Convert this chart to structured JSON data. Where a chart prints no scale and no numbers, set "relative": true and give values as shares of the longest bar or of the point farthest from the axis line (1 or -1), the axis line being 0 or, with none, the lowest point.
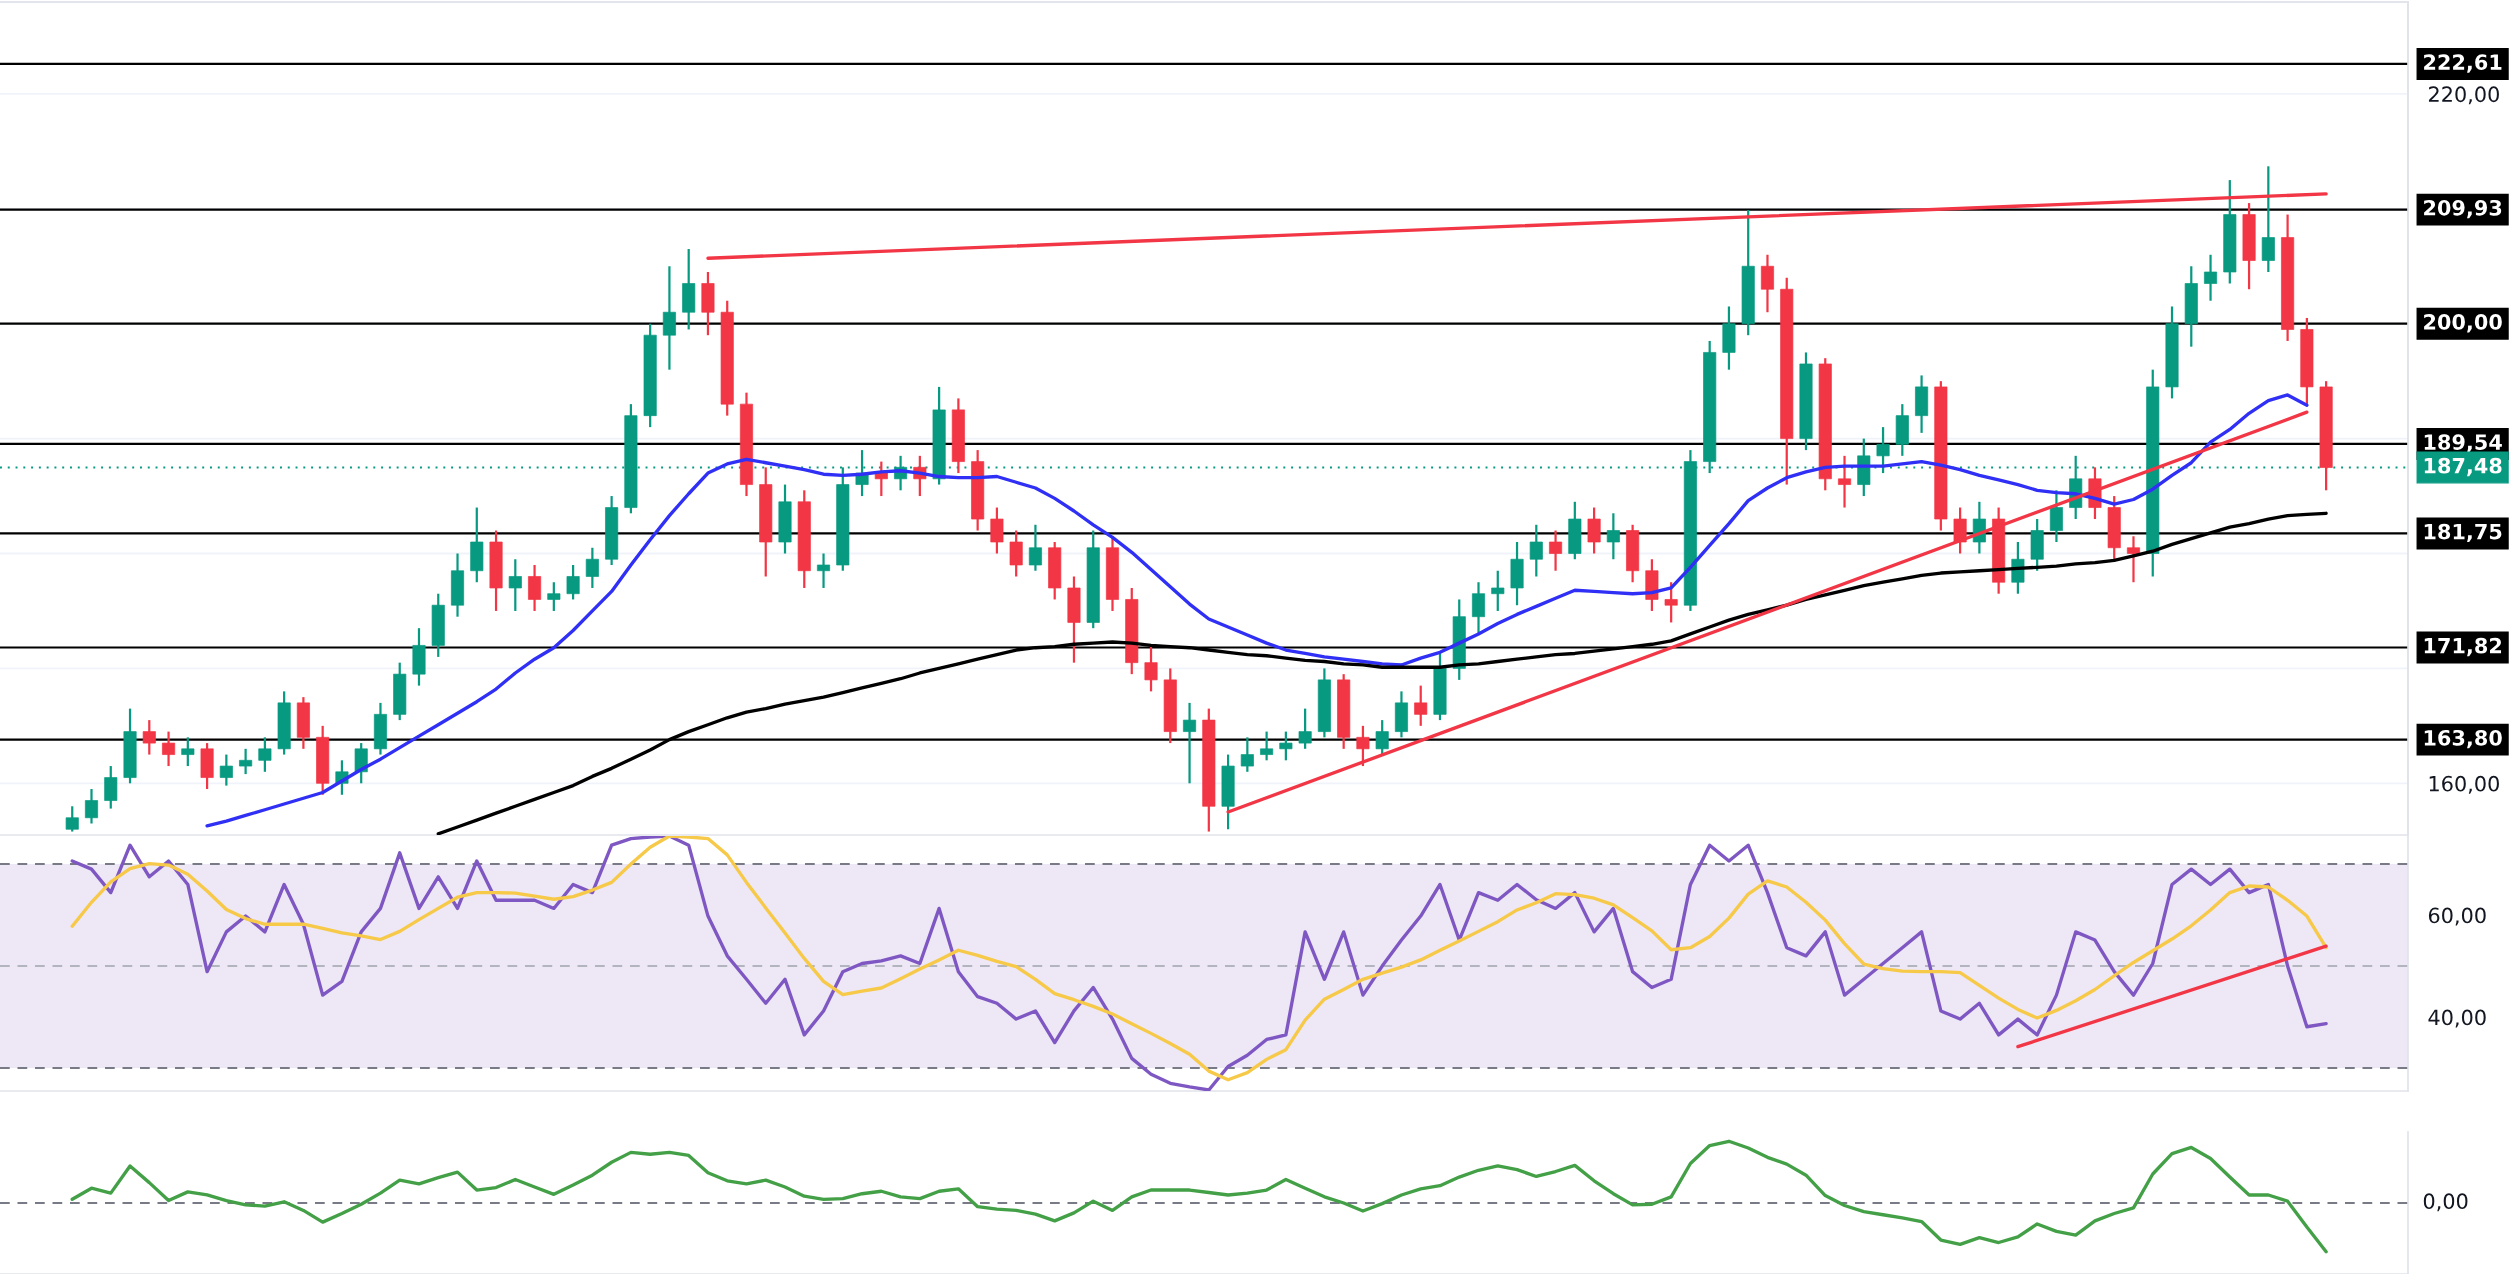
{
  "chart_data": [
    {
      "type": "candlestick",
      "categories": [
        null,
        null,
        null,
        null,
        null,
        null,
        null,
        null,
        null,
        null,
        null,
        null,
        null,
        null,
        null,
        null,
        null,
        null,
        null,
        null,
        null,
        null,
        null,
        null,
        null,
        null,
        null,
        null,
        null,
        null,
        null,
        null,
        null,
        null,
        null,
        null,
        null,
        null,
        null,
        null,
        null,
        null,
        null,
        null,
        null,
        null,
        null,
        null,
        null,
        null,
        null,
        null,
        null,
        null,
        null,
        null,
        null,
        null,
        null,
        null,
        null,
        null,
        null,
        null,
        null,
        null,
        null,
        null,
        null,
        null,
        null,
        null,
        null,
        null,
        null,
        null,
        null,
        null,
        null,
        null,
        null,
        null,
        null,
        null,
        null,
        null,
        null,
        null,
        null,
        null,
        null,
        null,
        null,
        null,
        null,
        null,
        null,
        null,
        null,
        null,
        null,
        null,
        null,
        null,
        null,
        null,
        null,
        null,
        null,
        null,
        null,
        null,
        null,
        null,
        null,
        null,
        null,
        null
      ],
      "ohlc": [
        [
          156.0,
          158.0,
          155.8,
          157.0
        ],
        [
          157.0,
          159.5,
          156.5,
          158.5
        ],
        [
          158.5,
          161.5,
          157.8,
          160.5
        ],
        [
          160.5,
          166.5,
          160.0,
          164.5
        ],
        [
          164.5,
          165.5,
          162.5,
          163.5
        ],
        [
          163.5,
          164.5,
          161.5,
          162.5
        ],
        [
          162.5,
          164.0,
          161.5,
          163.0
        ],
        [
          163.0,
          163.5,
          159.5,
          160.5
        ],
        [
          160.5,
          162.5,
          159.8,
          161.5
        ],
        [
          161.5,
          163.0,
          160.8,
          162.0
        ],
        [
          162.0,
          164.0,
          161.0,
          163.0
        ],
        [
          163.0,
          168.0,
          162.5,
          167.0
        ],
        [
          167.0,
          167.5,
          163.0,
          164.0
        ],
        [
          164.0,
          165.0,
          159.0,
          160.0
        ],
        [
          160.0,
          162.0,
          159.0,
          161.0
        ],
        [
          161.0,
          163.5,
          160.0,
          163.0
        ],
        [
          163.0,
          167.0,
          162.5,
          166.0
        ],
        [
          166.0,
          170.5,
          165.5,
          169.5
        ],
        [
          169.5,
          173.5,
          168.5,
          172.0
        ],
        [
          172.0,
          176.5,
          171.0,
          175.5
        ],
        [
          175.5,
          180.0,
          174.5,
          178.5
        ],
        [
          178.5,
          184.0,
          177.5,
          181.0
        ],
        [
          181.0,
          182.0,
          175.0,
          177.0
        ],
        [
          177.0,
          179.5,
          175.0,
          178.0
        ],
        [
          178.0,
          179.0,
          175.0,
          176.0
        ],
        [
          176.0,
          177.5,
          175.0,
          176.5
        ],
        [
          176.5,
          179.0,
          176.0,
          178.0
        ],
        [
          178.0,
          180.5,
          177.0,
          179.5
        ],
        [
          179.5,
          185.0,
          179.0,
          184.0
        ],
        [
          184.0,
          193.0,
          183.5,
          192.0
        ],
        [
          192.0,
          200.0,
          191.0,
          199.0
        ],
        [
          199.0,
          205.0,
          196.0,
          201.0
        ],
        [
          201.0,
          206.5,
          199.5,
          203.5
        ],
        [
          203.5,
          204.5,
          199.0,
          201.0
        ],
        [
          201.0,
          202.0,
          192.0,
          193.0
        ],
        [
          193.0,
          194.0,
          185.0,
          186.0
        ],
        [
          186.0,
          187.5,
          178.0,
          181.0
        ],
        [
          181.0,
          186.0,
          180.0,
          184.5
        ],
        [
          184.5,
          185.5,
          177.0,
          178.5
        ],
        [
          178.5,
          180.0,
          177.0,
          179.0
        ],
        [
          179.0,
          187.5,
          178.5,
          186.0
        ],
        [
          186.0,
          189.0,
          185.0,
          187.0
        ],
        [
          187.0,
          188.0,
          185.0,
          186.5
        ],
        [
          186.5,
          188.5,
          185.5,
          187.5
        ],
        [
          187.5,
          188.5,
          185.0,
          186.5
        ],
        [
          186.5,
          194.5,
          186.0,
          192.5
        ],
        [
          192.5,
          193.5,
          187.0,
          188.0
        ],
        [
          188.0,
          189.0,
          182.0,
          183.0
        ],
        [
          183.0,
          184.0,
          180.0,
          181.0
        ],
        [
          181.0,
          182.0,
          178.0,
          179.0
        ],
        [
          179.0,
          182.5,
          178.5,
          180.5
        ],
        [
          180.5,
          181.0,
          176.0,
          177.0
        ],
        [
          177.0,
          178.0,
          170.5,
          174.0
        ],
        [
          174.0,
          182.0,
          173.5,
          180.5
        ],
        [
          180.5,
          181.5,
          175.0,
          176.0
        ],
        [
          176.0,
          177.0,
          169.5,
          170.5
        ],
        [
          170.5,
          172.0,
          168.0,
          169.0
        ],
        [
          169.0,
          170.0,
          163.5,
          164.5
        ],
        [
          164.5,
          167.0,
          160.0,
          165.5
        ],
        [
          165.5,
          166.5,
          155.8,
          158.0
        ],
        [
          158.0,
          162.5,
          156.0,
          161.5
        ],
        [
          161.5,
          164.0,
          161.0,
          162.5
        ],
        [
          162.5,
          164.5,
          162.0,
          163.0
        ],
        [
          163.0,
          164.5,
          162.0,
          163.5
        ],
        [
          163.5,
          166.5,
          163.0,
          164.5
        ],
        [
          164.5,
          170.0,
          164.0,
          169.0
        ],
        [
          169.0,
          169.5,
          163.0,
          164.0
        ],
        [
          164.0,
          165.0,
          161.5,
          163.0
        ],
        [
          163.0,
          165.5,
          162.5,
          164.5
        ],
        [
          164.5,
          168.0,
          164.0,
          167.0
        ],
        [
          167.0,
          168.5,
          165.0,
          166.0
        ],
        [
          166.0,
          171.5,
          165.5,
          170.0
        ],
        [
          170.0,
          176.0,
          169.0,
          174.5
        ],
        [
          174.5,
          177.5,
          173.0,
          176.5
        ],
        [
          176.5,
          178.5,
          175.0,
          177.0
        ],
        [
          177.0,
          181.0,
          175.5,
          179.5
        ],
        [
          179.5,
          182.5,
          178.0,
          181.0
        ],
        [
          181.0,
          182.0,
          178.5,
          180.0
        ],
        [
          180.0,
          184.5,
          179.5,
          183.0
        ],
        [
          183.0,
          184.0,
          180.0,
          181.0
        ],
        [
          181.0,
          183.5,
          179.5,
          182.0
        ],
        [
          182.0,
          182.5,
          177.5,
          178.5
        ],
        [
          178.5,
          179.5,
          175.0,
          176.0
        ],
        [
          176.0,
          177.5,
          174.0,
          175.5
        ],
        [
          175.5,
          189.0,
          175.0,
          188.0
        ],
        [
          188.0,
          198.5,
          187.0,
          197.5
        ],
        [
          197.5,
          201.5,
          196.0,
          200.0
        ],
        [
          200.0,
          209.9,
          199.0,
          205.0
        ],
        [
          205.0,
          206.0,
          201.0,
          203.0
        ],
        [
          203.0,
          204.0,
          186.0,
          190.0
        ],
        [
          190.0,
          197.5,
          189.0,
          196.5
        ],
        [
          196.5,
          197.0,
          185.5,
          186.5
        ],
        [
          186.5,
          188.5,
          184.0,
          186.0
        ],
        [
          186.0,
          190.0,
          185.0,
          188.5
        ],
        [
          188.5,
          191.0,
          187.0,
          189.5
        ],
        [
          189.5,
          193.0,
          188.5,
          192.0
        ],
        [
          192.0,
          195.5,
          190.5,
          194.5
        ],
        [
          194.5,
          195.0,
          182.0,
          183.0
        ],
        [
          183.0,
          184.0,
          180.0,
          181.0
        ],
        [
          181.0,
          184.5,
          180.0,
          183.0
        ],
        [
          183.0,
          184.0,
          176.5,
          177.5
        ],
        [
          177.5,
          181.0,
          176.5,
          179.5
        ],
        [
          179.5,
          183.0,
          178.5,
          182.0
        ],
        [
          182.0,
          185.5,
          181.0,
          184.0
        ],
        [
          184.0,
          188.5,
          183.0,
          186.5
        ],
        [
          186.5,
          187.5,
          183.0,
          184.0
        ],
        [
          184.0,
          185.0,
          179.5,
          180.5
        ],
        [
          180.5,
          181.5,
          177.5,
          180.0
        ],
        [
          180.0,
          196.0,
          178.0,
          194.5
        ],
        [
          194.5,
          201.5,
          193.5,
          200.0
        ],
        [
          200.0,
          205.0,
          198.0,
          203.5
        ],
        [
          203.5,
          206.0,
          202.0,
          204.5
        ],
        [
          204.5,
          212.5,
          203.5,
          209.5
        ],
        [
          209.5,
          210.5,
          203.0,
          205.5
        ],
        [
          205.5,
          213.7,
          204.5,
          207.5
        ],
        [
          207.5,
          209.5,
          198.5,
          199.5
        ],
        [
          199.5,
          200.5,
          193.0,
          194.5
        ],
        [
          194.5,
          195.0,
          185.5,
          187.48
        ]
      ],
      "ylim": [
        155.5,
        228
      ],
      "yticks": [
        {
          "value": 160,
          "label": "160,00"
        },
        {
          "value": 170,
          "label": null
        },
        {
          "value": 180,
          "label": null
        },
        {
          "value": 190,
          "label": null
        },
        {
          "value": 200,
          "label": null
        },
        {
          "value": 210,
          "label": null
        },
        {
          "value": 220,
          "label": "220,00"
        }
      ],
      "tick_labels": "y",
      "grid": "y",
      "ref_lines": [
        {
          "axis": "y",
          "value": 222.61,
          "label": "222,61",
          "color": "#000000"
        },
        {
          "axis": "y",
          "value": 209.93,
          "label": "209,93",
          "color": "#000000"
        },
        {
          "axis": "y",
          "value": 200,
          "label": "200,00",
          "color": "#000000"
        },
        {
          "axis": "y",
          "value": 189.54,
          "label": "189,54",
          "color": "#000000"
        },
        {
          "axis": "y",
          "value": 187.48,
          "label": "187,48",
          "color": "#089981",
          "line_style": "dotted"
        },
        {
          "axis": "y",
          "value": 181.75,
          "label": "181,75",
          "color": "#000000"
        },
        {
          "axis": "y",
          "value": 171.82,
          "label": "171,82",
          "color": "#000000"
        },
        {
          "axis": "y",
          "value": 163.8,
          "label": "163,80",
          "color": "#000000"
        }
      ]
    },
    {
      "type": "line",
      "categories": [
        null,
        null,
        null,
        null,
        null,
        null,
        null,
        null,
        null,
        null,
        null,
        null,
        null,
        null,
        null,
        null,
        null,
        null,
        null,
        null,
        null,
        null,
        null,
        null,
        null,
        null,
        null,
        null,
        null,
        null,
        null,
        null,
        null,
        null,
        null,
        null,
        null,
        null,
        null,
        null,
        null,
        null,
        null,
        null,
        null,
        null,
        null,
        null,
        null,
        null,
        null,
        null,
        null,
        null,
        null,
        null,
        null,
        null,
        null,
        null,
        null,
        null,
        null,
        null,
        null,
        null,
        null,
        null,
        null,
        null,
        null,
        null,
        null,
        null,
        null,
        null,
        null,
        null,
        null,
        null,
        null,
        null,
        null,
        null,
        null,
        null,
        null,
        null,
        null,
        null,
        null,
        null,
        null,
        null,
        null,
        null,
        null,
        null,
        null,
        null,
        null,
        null,
        null,
        null,
        null,
        null,
        null,
        null,
        null,
        null,
        null,
        null,
        null,
        null,
        null,
        null,
        null,
        null
      ],
      "ylim": [
        155.5,
        228
      ],
      "tick_labels": false,
      "series": [
        {
          "color": "#2f2ff5",
          "values": [
            null,
            null,
            null,
            null,
            null,
            null,
            null,
            156.3,
            156.7,
            157.2,
            157.7,
            158.2,
            158.7,
            159.2,
            160.2,
            161.2,
            162.1,
            163.1,
            164.1,
            165.1,
            166.1,
            167.1,
            168.2,
            169.6,
            170.8,
            171.8,
            173.3,
            175.0,
            176.7,
            179.0,
            181.2,
            183.3,
            185.2,
            187.0,
            187.8,
            188.2,
            187.9,
            187.6,
            187.3,
            186.9,
            186.8,
            186.9,
            187.1,
            187.2,
            187.0,
            186.7,
            186.6,
            186.6,
            186.7,
            186.2,
            185.7,
            184.8,
            183.7,
            182.5,
            181.4,
            180.1,
            178.6,
            177.1,
            175.6,
            174.3,
            173.6,
            172.9,
            172.2,
            171.6,
            171.3,
            171.0,
            170.8,
            170.6,
            170.4,
            170.3,
            170.9,
            171.4,
            172.2,
            173.0,
            173.9,
            174.7,
            175.4,
            176.1,
            176.8,
            176.7,
            176.6,
            176.5,
            176.6,
            177.0,
            178.8,
            180.7,
            182.6,
            184.6,
            185.7,
            186.6,
            187.1,
            187.5,
            187.6,
            187.6,
            187.6,
            187.8,
            188.0,
            187.7,
            187.3,
            186.8,
            186.4,
            186.0,
            185.5,
            185.3,
            185.2,
            184.8,
            184.3,
            184.7,
            185.6,
            186.8,
            187.9,
            189.7,
            190.8,
            192.2,
            193.3,
            193.8,
            192.9,
            null
          ]
        },
        {
          "color": "#000000",
          "values": [
            null,
            null,
            null,
            null,
            null,
            null,
            null,
            null,
            null,
            null,
            null,
            null,
            null,
            null,
            null,
            null,
            null,
            null,
            null,
            155.6,
            156.2,
            156.8,
            157.4,
            158.0,
            158.6,
            159.2,
            159.8,
            160.6,
            161.3,
            162.1,
            162.9,
            163.8,
            164.5,
            165.1,
            165.7,
            166.2,
            166.5,
            166.9,
            167.2,
            167.5,
            167.9,
            168.3,
            168.7,
            169.1,
            169.6,
            170.0,
            170.4,
            170.8,
            171.2,
            171.6,
            171.8,
            171.9,
            172.1,
            172.2,
            172.3,
            172.2,
            172.0,
            171.9,
            171.8,
            171.6,
            171.4,
            171.2,
            171.1,
            170.9,
            170.7,
            170.6,
            170.4,
            170.3,
            170.1,
            170.1,
            170.1,
            170.1,
            170.3,
            170.4,
            170.6,
            170.8,
            171.0,
            171.2,
            171.3,
            171.5,
            171.7,
            171.9,
            172.1,
            172.4,
            173.0,
            173.6,
            174.2,
            174.7,
            175.1,
            175.5,
            176.0,
            176.4,
            176.8,
            177.2,
            177.5,
            177.8,
            178.1,
            178.3,
            178.4,
            178.5,
            178.6,
            178.7,
            178.8,
            178.9,
            179.1,
            179.2,
            179.4,
            179.8,
            180.2,
            180.8,
            181.3,
            181.8,
            182.3,
            182.6,
            183.0,
            183.3,
            183.4,
            183.5
          ]
        },
        {
          "color": "#f23645",
          "values": [
            null,
            null,
            null,
            null,
            null,
            null,
            null,
            null,
            null,
            null,
            null,
            null,
            null,
            null,
            null,
            null,
            null,
            null,
            null,
            null,
            null,
            null,
            null,
            null,
            null,
            null,
            null,
            null,
            null,
            null,
            null,
            null,
            null,
            205.7,
            null,
            null,
            null,
            null,
            null,
            null,
            null,
            null,
            null,
            null,
            null,
            null,
            null,
            null,
            null,
            null,
            null,
            null,
            null,
            null,
            null,
            null,
            null,
            null,
            null,
            null,
            null,
            null,
            null,
            null,
            null,
            null,
            null,
            null,
            null,
            null,
            null,
            null,
            null,
            null,
            null,
            null,
            null,
            null,
            null,
            null,
            null,
            null,
            null,
            null,
            null,
            null,
            null,
            null,
            null,
            null,
            null,
            null,
            null,
            null,
            null,
            null,
            null,
            null,
            null,
            null,
            null,
            null,
            null,
            null,
            null,
            null,
            null,
            null,
            null,
            null,
            null,
            null,
            null,
            null,
            null,
            null,
            null,
            211.3
          ]
        },
        {
          "color": "#f23645",
          "values": [
            null,
            null,
            null,
            null,
            null,
            null,
            null,
            null,
            null,
            null,
            null,
            null,
            null,
            null,
            null,
            null,
            null,
            null,
            null,
            null,
            null,
            null,
            null,
            null,
            null,
            null,
            null,
            null,
            null,
            null,
            null,
            null,
            null,
            null,
            null,
            null,
            null,
            null,
            null,
            null,
            null,
            null,
            null,
            null,
            null,
            null,
            null,
            null,
            null,
            null,
            null,
            null,
            null,
            null,
            null,
            null,
            null,
            null,
            null,
            null,
            157.5,
            null,
            null,
            null,
            null,
            null,
            null,
            null,
            null,
            null,
            null,
            null,
            null,
            null,
            null,
            null,
            null,
            null,
            null,
            null,
            null,
            null,
            null,
            null,
            null,
            null,
            null,
            null,
            null,
            null,
            null,
            null,
            null,
            null,
            null,
            null,
            null,
            null,
            null,
            null,
            null,
            null,
            null,
            null,
            null,
            null,
            null,
            null,
            null,
            null,
            null,
            null,
            null,
            null,
            null,
            null,
            192.3,
            null
          ]
        }
      ]
    },
    {
      "type": "line",
      "categories": [
        null,
        null,
        null,
        null,
        null,
        null,
        null,
        null,
        null,
        null,
        null,
        null,
        null,
        null,
        null,
        null,
        null,
        null,
        null,
        null,
        null,
        null,
        null,
        null,
        null,
        null,
        null,
        null,
        null,
        null,
        null,
        null,
        null,
        null,
        null,
        null,
        null,
        null,
        null,
        null,
        null,
        null,
        null,
        null,
        null,
        null,
        null,
        null,
        null,
        null,
        null,
        null,
        null,
        null,
        null,
        null,
        null,
        null,
        null,
        null,
        null,
        null,
        null,
        null,
        null,
        null,
        null,
        null,
        null,
        null,
        null,
        null,
        null,
        null,
        null,
        null,
        null,
        null,
        null,
        null,
        null,
        null,
        null,
        null,
        null,
        null,
        null,
        null,
        null,
        null,
        null,
        null,
        null,
        null,
        null,
        null,
        null,
        null,
        null,
        null,
        null,
        null,
        null,
        null,
        null,
        null,
        null,
        null,
        null,
        null,
        null,
        null,
        null,
        null,
        null,
        null,
        null,
        null
      ],
      "series": [
        {
          "color": "#7e57c2",
          "values": [
            70.6,
            69,
            64.4,
            73.7,
            67.5,
            70.6,
            66,
            48.9,
            56.7,
            59.8,
            56.7,
            66,
            58.2,
            44.3,
            47,
            56.7,
            61.3,
            72.2,
            61.3,
            67.5,
            61.3,
            70.6,
            62.9,
            62.9,
            62.9,
            61.3,
            66,
            64.4,
            73.7,
            75,
            75.3,
            75.5,
            73.7,
            59.8,
            52,
            47.4,
            42.7,
            47.4,
            36.5,
            41.2,
            48.9,
            50.5,
            51,
            52,
            50.5,
            61.3,
            48.9,
            44,
            42.7,
            39.6,
            41.2,
            35,
            41.2,
            45.8,
            39.6,
            31.9,
            28.8,
            27,
            26.3,
            25.7,
            30.3,
            32.5,
            35.6,
            36.5,
            56.7,
            47.4,
            56.7,
            44.3,
            50,
            55.1,
            59.8,
            66,
            55.1,
            64.4,
            62.9,
            66,
            63,
            61.3,
            64.4,
            56.7,
            61.3,
            48.9,
            45.8,
            47.4,
            66,
            73.7,
            70.6,
            73.7,
            64.4,
            53.6,
            52,
            56.7,
            44.3,
            47.4,
            50.5,
            53.6,
            56.7,
            41.2,
            39.6,
            42.7,
            36.5,
            39.6,
            36.5,
            44.3,
            56.7,
            55.1,
            48.9,
            44.3,
            50.5,
            66,
            69,
            66,
            69,
            64.4,
            66,
            50,
            38.1,
            38.7
          ]
        },
        {
          "color": "#f7c948",
          "values": [
            57.8,
            62.5,
            66.5,
            69.1,
            70.1,
            69.8,
            68.0,
            64.7,
            61.1,
            59.3,
            58.2,
            58.2,
            58.2,
            57.4,
            56.5,
            55.9,
            55.2,
            56.8,
            59.1,
            61.3,
            63.5,
            64.4,
            64.4,
            64.3,
            63.7,
            63.1,
            63.6,
            64.9,
            66.4,
            70.0,
            73.3,
            75.5,
            75.3,
            75.0,
            71.8,
            66.4,
            61.4,
            56.5,
            51.5,
            47.0,
            44.4,
            45.1,
            45.7,
            47.5,
            49.4,
            51.2,
            53.1,
            52.1,
            50.9,
            49.9,
            47.4,
            44.6,
            43.4,
            42.1,
            40.6,
            38.7,
            36.8,
            34.8,
            32.7,
            29.4,
            27.7,
            29.1,
            31.7,
            33.6,
            39.4,
            43.5,
            45.4,
            47.4,
            48.6,
            49.8,
            51.2,
            53.1,
            54.9,
            56.8,
            58.7,
            61.0,
            62.4,
            64.2,
            64.0,
            63.3,
            62.0,
            59.5,
            56.9,
            53.2,
            53.6,
            55.8,
            59.4,
            64.1,
            66.7,
            65.5,
            62.5,
            59.0,
            54.4,
            50.4,
            49.5,
            49.0,
            48.9,
            48.9,
            48.7,
            46.2,
            43.7,
            41.5,
            39.8,
            41.3,
            43.2,
            45.4,
            48.1,
            50.7,
            53.0,
            55.3,
            57.9,
            61.0,
            64.4,
            65.7,
            65.5,
            62.9,
            59.8,
            53.6
          ]
        },
        {
          "color": "#f23645",
          "values": [
            null,
            null,
            null,
            null,
            null,
            null,
            null,
            null,
            null,
            null,
            null,
            null,
            null,
            null,
            null,
            null,
            null,
            null,
            null,
            null,
            null,
            null,
            null,
            null,
            null,
            null,
            null,
            null,
            null,
            null,
            null,
            null,
            null,
            null,
            null,
            null,
            null,
            null,
            null,
            null,
            null,
            null,
            null,
            null,
            null,
            null,
            null,
            null,
            null,
            null,
            null,
            null,
            null,
            null,
            null,
            null,
            null,
            null,
            null,
            null,
            null,
            null,
            null,
            null,
            null,
            null,
            null,
            null,
            null,
            null,
            null,
            null,
            null,
            null,
            null,
            null,
            null,
            null,
            null,
            null,
            null,
            null,
            null,
            null,
            null,
            null,
            null,
            null,
            null,
            null,
            null,
            null,
            null,
            null,
            null,
            null,
            null,
            null,
            null,
            null,
            null,
            34.2,
            null,
            null,
            null,
            null,
            null,
            null,
            null,
            null,
            null,
            null,
            null,
            null,
            null,
            null,
            null,
            53.9
          ]
        }
      ],
      "ylim": [
        25.5,
        75.5
      ],
      "yticks": [
        {
          "value": 40,
          "label": "40,00"
        },
        {
          "value": 60,
          "label": "60,00"
        }
      ],
      "tick_labels": "y",
      "bands": [
        {
          "axis": "y",
          "from": 30,
          "to": 70,
          "color": "#ede7f6"
        }
      ],
      "ref_lines": [
        {
          "axis": "y",
          "value": 70,
          "color": "#787b86",
          "line_style": "dashed"
        },
        {
          "axis": "y",
          "value": 50,
          "color": "#b2b5be",
          "line_style": "dashed"
        },
        {
          "axis": "y",
          "value": 30,
          "color": "#787b86",
          "line_style": "dashed"
        }
      ]
    },
    {
      "type": "line",
      "relative": true,
      "tick_labels": false,
      "categories": [
        null,
        null,
        null,
        null,
        null,
        null,
        null,
        null,
        null,
        null,
        null,
        null,
        null,
        null,
        null,
        null,
        null,
        null,
        null,
        null,
        null,
        null,
        null,
        null,
        null,
        null,
        null,
        null,
        null,
        null,
        null,
        null,
        null,
        null,
        null,
        null,
        null,
        null,
        null,
        null,
        null,
        null,
        null,
        null,
        null,
        null,
        null,
        null,
        null,
        null,
        null,
        null,
        null,
        null,
        null,
        null,
        null,
        null,
        null,
        null,
        null,
        null,
        null,
        null,
        null,
        null,
        null,
        null,
        null,
        null,
        null,
        null,
        null,
        null,
        null,
        null,
        null,
        null,
        null,
        null,
        null,
        null,
        null,
        null,
        null,
        null,
        null,
        null,
        null,
        null,
        null,
        null,
        null,
        null,
        null,
        null,
        null,
        null,
        null,
        null,
        null,
        null,
        null,
        null,
        null,
        null,
        null,
        null,
        null,
        null,
        null,
        null,
        null,
        null,
        null,
        null,
        null,
        null
      ],
      "series": [
        {
          "color": "#43a047",
          "values": [
            0.06,
            0.24,
            0.16,
            0.6,
            0.33,
            0.04,
            0.18,
            0.13,
            0.04,
            -0.03,
            -0.05,
            0.02,
            -0.12,
            -0.31,
            -0.17,
            -0.02,
            0.16,
            0.37,
            0.31,
            0.41,
            0.5,
            0.21,
            0.25,
            0.38,
            0.26,
            0.14,
            0.29,
            0.45,
            0.66,
            0.82,
            0.79,
            0.82,
            0.77,
            0.49,
            0.36,
            0.31,
            0.37,
            0.26,
            0.11,
            0.06,
            0.07,
            0.15,
            0.19,
            0.1,
            0.07,
            0.19,
            0.23,
            -0.06,
            -0.1,
            -0.12,
            -0.18,
            -0.29,
            -0.16,
            0.03,
            -0.12,
            0.1,
            0.21,
            0.21,
            0.21,
            0.17,
            0.13,
            0.16,
            0.21,
            0.38,
            0.24,
            0.1,
            0.0,
            -0.13,
            -0.01,
            0.13,
            0.23,
            0.28,
            0.42,
            0.53,
            0.6,
            0.54,
            0.43,
            0.51,
            0.61,
            0.36,
            0.15,
            -0.03,
            -0.02,
            0.1,
            0.64,
            0.93,
            1.0,
            0.89,
            0.74,
            0.63,
            0.45,
            0.12,
            -0.04,
            -0.14,
            -0.19,
            -0.24,
            -0.3,
            -0.6,
            -0.67,
            -0.56,
            -0.64,
            -0.55,
            -0.34,
            -0.46,
            -0.52,
            -0.29,
            -0.17,
            -0.08,
            0.47,
            0.8,
            0.9,
            0.72,
            0.42,
            0.13,
            0.13,
            0.03,
            -0.39,
            -0.79
          ]
        }
      ],
      "ref_lines": [
        {
          "axis": "y",
          "value": 0,
          "label": "0,00",
          "color": "#787b86",
          "line_style": "dashed"
        }
      ]
    }
  ]
}
